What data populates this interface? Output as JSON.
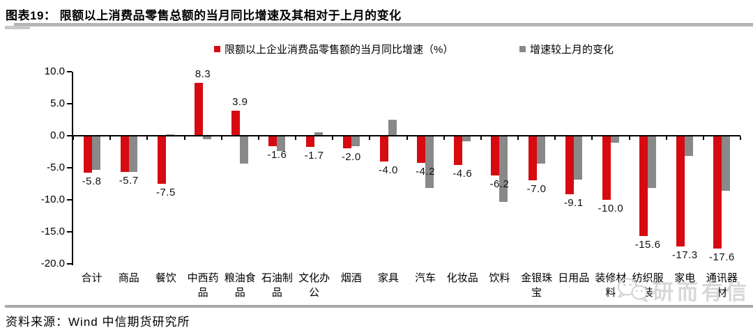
{
  "header": {
    "title": "图表19：  限额以上消费品零售总额的当月同比增速及其相对于上月的变化"
  },
  "footer": {
    "source": "资料来源：Wind 中信期货研究所"
  },
  "watermark": {
    "text": "研而有信"
  },
  "colors": {
    "series_red": "#d60a10",
    "series_gray": "#898989",
    "axis": "#000000",
    "watermark_gray": "#d7d7d7"
  },
  "chart_data": {
    "type": "bar",
    "title": "限额以上消费品零售总额的当月同比增速及其相对于上月的变化",
    "categories": [
      "合计",
      "商品",
      "餐饮",
      "中西药品",
      "粮油食品",
      "石油制品",
      "文化办公",
      "烟酒",
      "家具",
      "汽车",
      "化妆品",
      "饮料",
      "金银珠宝",
      "日用品",
      "装修材料",
      "纺织服装",
      "家电",
      "通讯器材"
    ],
    "series": [
      {
        "name": "限额以上企业消费品零售额的当月同比增速（%）",
        "color": "#d60a10",
        "values": [
          -5.8,
          -5.7,
          -7.5,
          8.3,
          3.9,
          -1.6,
          -1.7,
          -2.0,
          -4.0,
          -4.2,
          -4.6,
          -6.2,
          -7.0,
          -9.1,
          -10.0,
          -15.6,
          -17.3,
          -17.6
        ],
        "data_labels": true
      },
      {
        "name": "增速较上月的变化",
        "color": "#898989",
        "values": [
          -5.3,
          -5.7,
          0.2,
          -0.5,
          -4.3,
          -2.4,
          0.5,
          -1.6,
          2.5,
          -8.2,
          -0.9,
          -10.3,
          -4.3,
          -6.9,
          -1.1,
          -8.1,
          -3.2,
          -8.6
        ],
        "data_labels": false
      }
    ],
    "ylim": [
      -20,
      10
    ],
    "yticks": [
      10,
      5,
      0,
      -5,
      -10,
      -15,
      -20
    ],
    "ytick_format_decimals": 1,
    "grid": false,
    "legend_position": "top"
  }
}
